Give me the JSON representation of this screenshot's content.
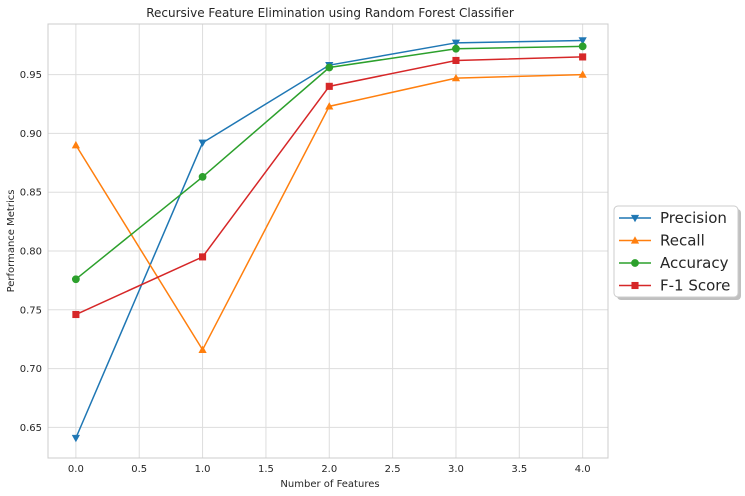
{
  "chart_data": {
    "type": "line",
    "title": "Recursive Feature Elimination using Random Forest Classifier",
    "xlabel": "Number of Features",
    "ylabel": "Performance Metrics",
    "x": [
      0.0,
      1.0,
      2.0,
      3.0,
      4.0
    ],
    "xlim": [
      -0.22,
      4.2
    ],
    "ylim": [
      0.624,
      0.993
    ],
    "xticks": [
      0.0,
      0.5,
      1.0,
      1.5,
      2.0,
      2.5,
      3.0,
      3.5,
      4.0
    ],
    "xtick_labels": [
      "0.0",
      "0.5",
      "1.0",
      "1.5",
      "2.0",
      "2.5",
      "3.0",
      "3.5",
      "4.0"
    ],
    "yticks": [
      0.65,
      0.7,
      0.75,
      0.8,
      0.85,
      0.9,
      0.95
    ],
    "ytick_labels": [
      "0.65",
      "0.70",
      "0.75",
      "0.80",
      "0.85",
      "0.90",
      "0.95"
    ],
    "grid": true,
    "legend_position": "outside-right",
    "series": [
      {
        "name": "Precision",
        "values": [
          0.641,
          0.892,
          0.958,
          0.977,
          0.979
        ],
        "color": "#1f77b4",
        "marker": "triangle-down"
      },
      {
        "name": "Recall",
        "values": [
          0.89,
          0.716,
          0.923,
          0.947,
          0.95
        ],
        "color": "#ff7f0e",
        "marker": "triangle-up"
      },
      {
        "name": "Accuracy",
        "values": [
          0.776,
          0.863,
          0.956,
          0.972,
          0.974
        ],
        "color": "#2ca02c",
        "marker": "circle"
      },
      {
        "name": "F-1 Score",
        "values": [
          0.746,
          0.795,
          0.94,
          0.962,
          0.965
        ],
        "color": "#d62728",
        "marker": "square"
      }
    ]
  }
}
